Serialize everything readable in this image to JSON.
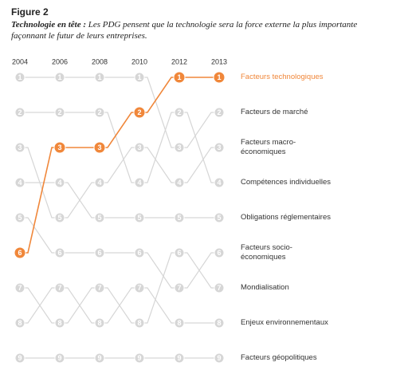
{
  "chart_data": {
    "type": "bump",
    "title": "Figure 2",
    "subtitle_lead": "Technologie en tête :",
    "subtitle": "Les PDG pensent que la technologie sera la force externe la plus importante façonnant le futur de leurs entreprises.",
    "categories": [
      "2004",
      "2006",
      "2008",
      "2010",
      "2012",
      "2013"
    ],
    "ylim": [
      9,
      1
    ],
    "series": [
      {
        "name": "Facteurs de marché",
        "color": "#d6d6d6",
        "values": [
          1,
          1,
          1,
          1,
          3,
          2
        ]
      },
      {
        "name": "Facteurs macro-économiques",
        "color": "#d6d6d6",
        "values": [
          3,
          5,
          4,
          3,
          4,
          3
        ]
      },
      {
        "name": "Compétences individuelles",
        "color": "#d6d6d6",
        "values": [
          2,
          2,
          2,
          4,
          2,
          4
        ]
      },
      {
        "name": "Obligations réglementaires",
        "color": "#d6d6d6",
        "values": [
          4,
          4,
          5,
          5,
          5,
          5
        ]
      },
      {
        "name": "Facteurs socio-économiques",
        "color": "#d6d6d6",
        "values": [
          5,
          6,
          6,
          6,
          7,
          6
        ]
      },
      {
        "name": "Mondialisation",
        "color": "#d6d6d6",
        "values": [
          7,
          8,
          7,
          8,
          6,
          7
        ]
      },
      {
        "name": "Enjeux environnementaux",
        "color": "#d6d6d6",
        "values": [
          8,
          7,
          8,
          7,
          8,
          8
        ]
      },
      {
        "name": "Facteurs géopolitiques",
        "color": "#d6d6d6",
        "values": [
          9,
          9,
          9,
          9,
          9,
          9
        ]
      },
      {
        "name": "Facteurs technologiques",
        "color": "#f0873a",
        "values": [
          6,
          3,
          3,
          2,
          1,
          1
        ]
      }
    ]
  }
}
